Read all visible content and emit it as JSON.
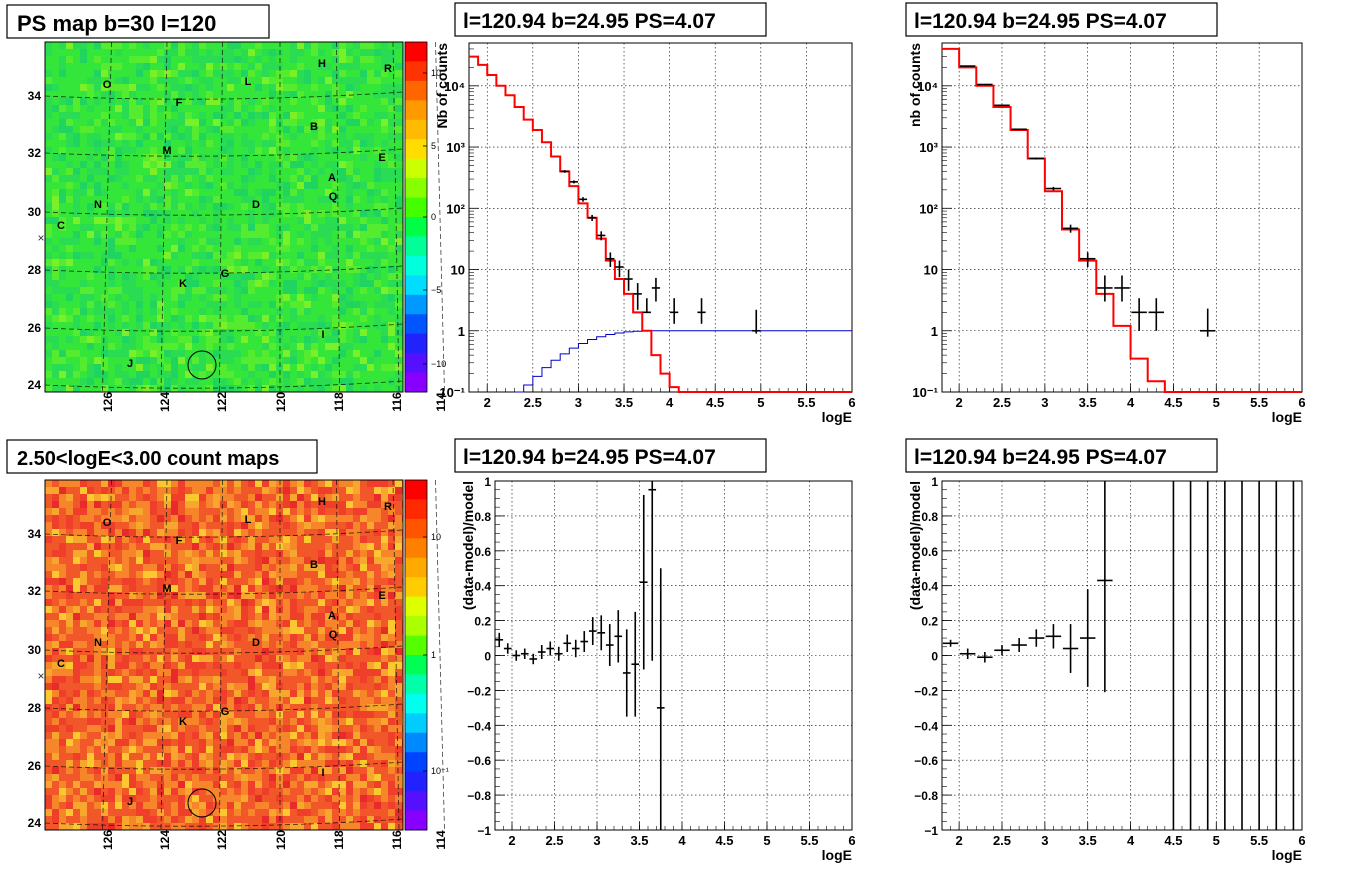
{
  "titles": {
    "map_top": "PS map b=30 l=120",
    "map_bottom": "2.50<logE<3.00 count maps",
    "spec1": "l=120.94 b=24.95 PS=4.07",
    "spec2": "l=120.94 b=24.95 PS=4.07",
    "res1": "l=120.94 b=24.95 PS=4.07",
    "res2": "l=120.94 b=24.95 PS=4.07"
  },
  "map_axes": {
    "x_ticks": [
      "126",
      "124",
      "122",
      "120",
      "118",
      "116",
      "114"
    ],
    "y_ticks": [
      "34",
      "32",
      "30",
      "28",
      "26",
      "24"
    ],
    "source_labels": [
      "O",
      "F",
      "M",
      "N",
      "C",
      "L",
      "H",
      "R",
      "B",
      "E",
      "A",
      "Q",
      "D",
      "G",
      "K",
      "I",
      "J"
    ]
  },
  "colors": {
    "model_line": "#ff0000",
    "signal_line": "#0000cc",
    "data_points": "#000000",
    "map_top_background": "#22e040",
    "map_bottom_background": "#f0662a"
  },
  "chart_data": [
    {
      "type": "heatmap",
      "title": "PS map b=30 l=120",
      "x_ticks": [
        126,
        124,
        122,
        120,
        118,
        116,
        114
      ],
      "y_ticks": [
        34,
        32,
        30,
        28,
        26,
        24
      ],
      "colorbar": {
        "scale": "linear",
        "ticks": [
          "10",
          "5",
          "0",
          "−5",
          "−10"
        ],
        "range": [
          -12,
          12
        ]
      }
    },
    {
      "type": "heatmap",
      "title": "2.50<logE<3.00 count maps",
      "x_ticks": [
        126,
        124,
        122,
        120,
        118,
        116,
        114
      ],
      "y_ticks": [
        34,
        32,
        30,
        28,
        26,
        24
      ],
      "colorbar": {
        "scale": "log",
        "ticks": [
          "10",
          "1",
          "10⁻¹"
        ],
        "range": [
          0.05,
          40
        ]
      }
    },
    {
      "type": "line",
      "title": "l=120.94 b=24.95 PS=4.07",
      "xlabel": "logE",
      "ylabel": "Nb of counts",
      "xlim": [
        1.8,
        6
      ],
      "ylim": [
        0.1,
        50000
      ],
      "yscale": "log",
      "x_ticks": [
        "2",
        "2.5",
        "3",
        "3.5",
        "4",
        "4.5",
        "5",
        "5.5",
        "6"
      ],
      "y_ticks": [
        "10⁻¹",
        "1",
        "10",
        "10²",
        "10³",
        "10⁴"
      ],
      "bin_width": 0.1,
      "series": [
        {
          "x": [
            1.8,
            1.9,
            2.0,
            2.1,
            2.2,
            2.3,
            2.4,
            2.5,
            2.6,
            2.7,
            2.8,
            2.9,
            3.0,
            3.1,
            3.2,
            3.3,
            3.4,
            3.5,
            3.6,
            3.7,
            3.8,
            3.9,
            4.0,
            4.1,
            4.2,
            4.3,
            4.4,
            4.5,
            4.6,
            4.7,
            4.8,
            4.9,
            5.0,
            5.1,
            5.2,
            5.3,
            5.4,
            5.5,
            5.6,
            5.7,
            5.8,
            5.9
          ],
          "values": [
            30000,
            22000,
            15000,
            10000,
            7000,
            4500,
            2800,
            1900,
            1200,
            700,
            400,
            230,
            120,
            70,
            32,
            14,
            7,
            4,
            2,
            1,
            0.4,
            0.2,
            0.12,
            0.1,
            0.1,
            0.1,
            0.1,
            0.1,
            0.1,
            0.1,
            0.1,
            0.1,
            0.1,
            0.1,
            0.1,
            0.1,
            0.1,
            0.1,
            0.1,
            0.1,
            0.1,
            0.1
          ]
        },
        {
          "x": [
            2.3,
            2.4,
            2.5,
            2.6,
            2.7,
            2.8,
            2.9,
            3.0,
            3.1,
            3.2,
            3.3,
            3.4,
            3.5,
            3.6,
            3.7,
            3.8,
            3.9,
            4.0,
            4.1,
            4.2,
            4.3,
            4.4,
            4.5,
            4.6,
            4.7,
            4.8,
            4.9,
            5.0,
            5.1,
            5.2,
            5.3,
            5.4,
            5.5,
            5.6,
            5.7,
            5.8,
            5.9
          ],
          "values": [
            0.1,
            0.13,
            0.18,
            0.25,
            0.33,
            0.42,
            0.52,
            0.62,
            0.72,
            0.8,
            0.87,
            0.92,
            0.96,
            0.98,
            1,
            1,
            1,
            1,
            1,
            1,
            1,
            1,
            1,
            1,
            1,
            1,
            1,
            1,
            1,
            1,
            1,
            1,
            1,
            1,
            1,
            1,
            1
          ]
        },
        {
          "x": [
            2.85,
            2.95,
            3.05,
            3.15,
            3.25,
            3.35,
            3.45,
            3.55,
            3.65,
            3.75,
            3.85,
            4.05,
            4.35,
            4.95
          ],
          "values": [
            400,
            270,
            140,
            70,
            36,
            15,
            11,
            7,
            4,
            2,
            5,
            2,
            2,
            1
          ],
          "yerr_lo": [
            380,
            255,
            128,
            62,
            30,
            11,
            7.5,
            4.5,
            2.2,
            1.95,
            3,
            1.3,
            1.3,
            0.9
          ],
          "yerr_hi": [
            420,
            285,
            152,
            78,
            42,
            19,
            14,
            10,
            6,
            3.4,
            7.3,
            3.4,
            3.4,
            2.2
          ]
        }
      ]
    },
    {
      "type": "line",
      "title": "l=120.94 b=24.95 PS=4.07",
      "xlabel": "logE",
      "ylabel": "nb of counts",
      "xlim": [
        1.8,
        6
      ],
      "ylim": [
        0.1,
        50000
      ],
      "yscale": "log",
      "x_ticks": [
        "2",
        "2.5",
        "3",
        "3.5",
        "4",
        "4.5",
        "5",
        "5.5",
        "6"
      ],
      "y_ticks": [
        "10⁻¹",
        "1",
        "10",
        "10²",
        "10³",
        "10⁴"
      ],
      "bin_width": 0.2,
      "series": [
        {
          "x": [
            1.8,
            2.0,
            2.2,
            2.4,
            2.6,
            2.8,
            3.0,
            3.2,
            3.4,
            3.6,
            3.8,
            4.0,
            4.2,
            4.4,
            4.6,
            4.8,
            5.0,
            5.2,
            5.4,
            5.6,
            5.8
          ],
          "values": [
            40000,
            20000,
            10000,
            4500,
            1900,
            650,
            190,
            45,
            14,
            4,
            1.2,
            0.35,
            0.15,
            0.1,
            0.1,
            0.1,
            0.1,
            0.1,
            0.1,
            0.1,
            0.1
          ]
        },
        {
          "x": [
            2.1,
            2.3,
            2.5,
            2.7,
            2.9,
            3.1,
            3.3,
            3.5,
            3.7,
            3.9,
            4.1,
            4.3,
            4.9
          ],
          "values": [
            21000,
            10500,
            4800,
            1950,
            650,
            210,
            47,
            15,
            5,
            5,
            2,
            2,
            1
          ],
          "yerr_lo": [
            20800,
            10350,
            4700,
            1900,
            625,
            196,
            40,
            11,
            3,
            3,
            1,
            1,
            0.8
          ],
          "yerr_hi": [
            21200,
            10650,
            4900,
            2000,
            675,
            224,
            54,
            19,
            8,
            8,
            3.4,
            3.4,
            2.3
          ]
        }
      ]
    },
    {
      "type": "scatter",
      "title": "l=120.94 b=24.95 PS=4.07",
      "xlabel": "logE",
      "ylabel": "(data-model)/model",
      "xlim": [
        1.8,
        6
      ],
      "ylim": [
        -1,
        1
      ],
      "x_ticks": [
        "2",
        "2.5",
        "3",
        "3.5",
        "4",
        "4.5",
        "5",
        "5.5",
        "6"
      ],
      "y_ticks": [
        "1",
        "0.8",
        "0.6",
        "0.4",
        "0.2",
        "0",
        "−0.2",
        "−0.4",
        "−0.6",
        "−0.8",
        "−1"
      ],
      "bin_width": 0.1,
      "series": [
        {
          "x": [
            1.85,
            1.95,
            2.05,
            2.15,
            2.25,
            2.35,
            2.45,
            2.55,
            2.65,
            2.75,
            2.85,
            2.95,
            3.05,
            3.15,
            3.25,
            3.35,
            3.45,
            3.55,
            3.65,
            3.75
          ],
          "values": [
            0.09,
            0.04,
            0.0,
            0.01,
            -0.02,
            0.02,
            0.04,
            0.01,
            0.07,
            0.04,
            0.08,
            0.14,
            0.13,
            0.06,
            0.11,
            -0.1,
            -0.05,
            0.42,
            0.95,
            -0.3
          ],
          "yerr": [
            0.04,
            0.03,
            0.03,
            0.03,
            0.03,
            0.04,
            0.04,
            0.04,
            0.05,
            0.05,
            0.06,
            0.08,
            0.1,
            0.12,
            0.15,
            0.25,
            0.3,
            0.5,
            0.98,
            0.8
          ]
        }
      ]
    },
    {
      "type": "scatter",
      "title": "l=120.94 b=24.95 PS=4.07",
      "xlabel": "logE",
      "ylabel": "(data-model)/model",
      "xlim": [
        1.8,
        6
      ],
      "ylim": [
        -1,
        1
      ],
      "x_ticks": [
        "2",
        "2.5",
        "3",
        "3.5",
        "4",
        "4.5",
        "5",
        "5.5",
        "6"
      ],
      "y_ticks": [
        "1",
        "0.8",
        "0.6",
        "0.4",
        "0.2",
        "0",
        "−0.2",
        "−0.4",
        "−0.6",
        "−0.8",
        "−1"
      ],
      "bin_width": 0.2,
      "series": [
        {
          "x": [
            1.9,
            2.1,
            2.3,
            2.5,
            2.7,
            2.9,
            3.1,
            3.3,
            3.5,
            3.7,
            4.5,
            4.7,
            4.9,
            5.1,
            5.3,
            5.5,
            5.7,
            5.9
          ],
          "values": [
            0.07,
            0.01,
            -0.01,
            0.03,
            0.06,
            0.1,
            0.11,
            0.04,
            0.1,
            0.43,
            0,
            0,
            0,
            0,
            0,
            0,
            0,
            0
          ],
          "yerr": [
            0.02,
            0.03,
            0.03,
            0.03,
            0.04,
            0.05,
            0.07,
            0.14,
            0.28,
            0.64,
            3,
            3,
            3,
            3,
            3,
            3,
            3,
            3
          ]
        }
      ]
    }
  ]
}
